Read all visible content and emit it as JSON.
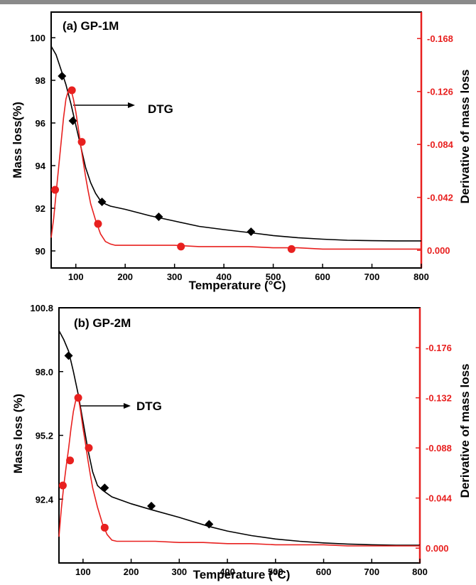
{
  "colors": {
    "mass": "#000000",
    "dtg": "#e8201f",
    "axis_right": "#e8201f"
  },
  "chart_data": [
    {
      "type": "line",
      "title": "(a) GP-1M",
      "xlabel": "Temperature (°C)",
      "ylabel": "Mass loss(%)",
      "ylabel_right": "Derivative of mass loss",
      "annotation": "DTG",
      "xlim": [
        50,
        800
      ],
      "ylim": [
        89.2,
        101.2
      ],
      "ylim_right": [
        0.014,
        -0.189
      ],
      "x_ticks": [
        100,
        200,
        300,
        400,
        500,
        600,
        700,
        800
      ],
      "y_ticks": [
        90,
        92,
        94,
        96,
        98,
        100
      ],
      "y_right_ticks": [
        0.0,
        -0.042,
        -0.084,
        -0.126,
        -0.168
      ],
      "series": [
        {
          "name": "Mass loss",
          "axis": "left",
          "color": "#000000",
          "marker": "diamond",
          "x": [
            50,
            60,
            70,
            80,
            90,
            100,
            110,
            120,
            130,
            140,
            150,
            160,
            170,
            180,
            200,
            225,
            250,
            270,
            300,
            350,
            400,
            455,
            500,
            550,
            600,
            650,
            700,
            750,
            800
          ],
          "y": [
            99.6,
            99.2,
            98.5,
            97.8,
            96.9,
            95.9,
            94.9,
            93.9,
            93.2,
            92.7,
            92.35,
            92.2,
            92.1,
            92.05,
            91.95,
            91.8,
            91.65,
            91.55,
            91.4,
            91.15,
            91.0,
            90.85,
            90.72,
            90.62,
            90.55,
            90.5,
            90.48,
            90.47,
            90.47
          ],
          "markers_x": [
            72,
            94,
            153,
            268,
            455
          ],
          "markers_y": [
            98.2,
            96.1,
            92.3,
            91.6,
            90.9
          ]
        },
        {
          "name": "DTG",
          "axis": "right",
          "color": "#e8201f",
          "marker": "circle",
          "x": [
            50,
            55,
            60,
            65,
            70,
            75,
            80,
            85,
            90,
            95,
            100,
            105,
            110,
            115,
            120,
            125,
            130,
            140,
            150,
            160,
            170,
            180,
            200,
            250,
            300,
            350,
            400,
            450,
            500,
            550,
            600,
            650,
            700,
            750,
            800
          ],
          "y": [
            -0.01,
            -0.025,
            -0.045,
            -0.065,
            -0.085,
            -0.105,
            -0.12,
            -0.127,
            -0.128,
            -0.12,
            -0.11,
            -0.097,
            -0.083,
            -0.07,
            -0.058,
            -0.047,
            -0.037,
            -0.024,
            -0.013,
            -0.007,
            -0.005,
            -0.004,
            -0.004,
            -0.004,
            -0.004,
            -0.003,
            -0.003,
            -0.003,
            -0.002,
            -0.002,
            -0.001,
            -0.001,
            -0.001,
            -0.001,
            -0.001
          ],
          "markers_x": [
            58,
            92,
            112,
            145,
            313,
            537
          ],
          "markers_y": [
            -0.048,
            -0.127,
            -0.086,
            -0.021,
            -0.003,
            -0.001
          ]
        }
      ]
    },
    {
      "type": "line",
      "title": "(b) GP-2M",
      "xlabel": "Temperature (°C)",
      "ylabel": "Mass loss (%)",
      "ylabel_right": "Derivative of mass loss",
      "annotation": "DTG",
      "xlim": [
        50,
        800
      ],
      "ylim": [
        89.6,
        100.8
      ],
      "ylim_right": [
        0.013,
        -0.211
      ],
      "x_ticks": [
        100,
        200,
        300,
        400,
        500,
        600,
        700,
        800
      ],
      "y_ticks": [
        92.4,
        95.2,
        98.0,
        100.8
      ],
      "y_right_ticks": [
        0.0,
        -0.044,
        -0.088,
        -0.132,
        -0.176
      ],
      "series": [
        {
          "name": "Mass loss",
          "axis": "left",
          "color": "#000000",
          "marker": "diamond",
          "x": [
            50,
            60,
            70,
            80,
            90,
            100,
            110,
            120,
            130,
            140,
            150,
            160,
            180,
            200,
            240,
            300,
            362,
            400,
            450,
            500,
            550,
            600,
            650,
            700,
            750,
            800
          ],
          "y": [
            99.8,
            99.4,
            98.9,
            98.0,
            97.0,
            95.8,
            94.6,
            93.6,
            93.0,
            92.8,
            92.65,
            92.5,
            92.35,
            92.2,
            91.95,
            91.6,
            91.2,
            91.0,
            90.8,
            90.65,
            90.55,
            90.48,
            90.43,
            90.4,
            90.38,
            90.38
          ],
          "markers_x": [
            70,
            145,
            242,
            362
          ],
          "markers_y": [
            98.7,
            92.9,
            92.1,
            91.3
          ]
        },
        {
          "name": "DTG",
          "axis": "right",
          "color": "#e8201f",
          "marker": "circle",
          "x": [
            50,
            55,
            60,
            65,
            70,
            75,
            80,
            85,
            90,
            95,
            100,
            105,
            110,
            115,
            120,
            130,
            140,
            150,
            160,
            170,
            180,
            200,
            250,
            300,
            350,
            400,
            450,
            500,
            550,
            600,
            650,
            700,
            750,
            800
          ],
          "y": [
            -0.01,
            -0.035,
            -0.055,
            -0.072,
            -0.087,
            -0.105,
            -0.12,
            -0.13,
            -0.133,
            -0.12,
            -0.105,
            -0.092,
            -0.078,
            -0.065,
            -0.053,
            -0.036,
            -0.022,
            -0.012,
            -0.007,
            -0.006,
            -0.006,
            -0.006,
            -0.006,
            -0.005,
            -0.005,
            -0.004,
            -0.004,
            -0.003,
            -0.003,
            -0.003,
            -0.002,
            -0.002,
            -0.002,
            -0.002
          ],
          "markers_x": [
            58,
            73,
            90,
            112,
            145
          ],
          "markers_y": [
            -0.055,
            -0.077,
            -0.132,
            -0.088,
            -0.018
          ]
        }
      ]
    }
  ]
}
